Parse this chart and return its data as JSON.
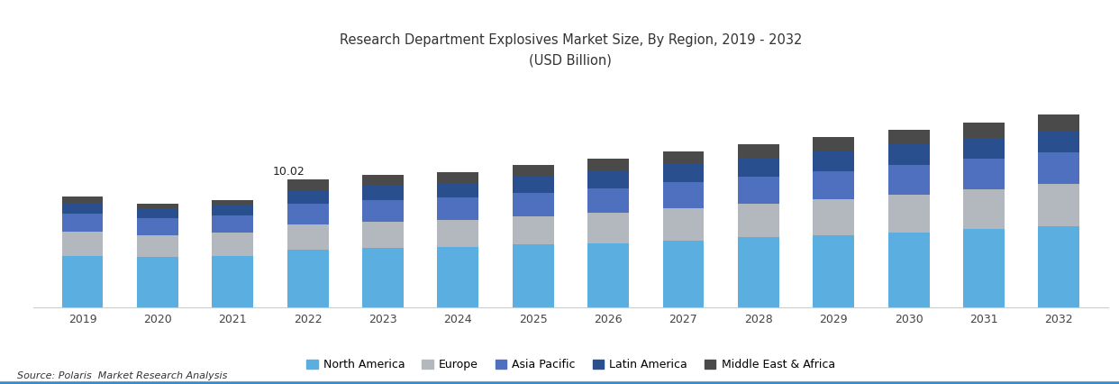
{
  "title_line1": "Research Department Explosives Market Size, By Region, 2019 - 2032",
  "title_line2": "(USD Billion)",
  "years": [
    2019,
    2020,
    2021,
    2022,
    2023,
    2024,
    2025,
    2026,
    2027,
    2028,
    2029,
    2030,
    2031,
    2032
  ],
  "regions": [
    "North America",
    "Europe",
    "Asia Pacific",
    "Latin America",
    "Middle East & Africa"
  ],
  "colors": [
    "#5aaee0",
    "#b2b8be",
    "#4f6fbf",
    "#2a4f8f",
    "#4a4a4a"
  ],
  "data": {
    "North America": [
      4.0,
      3.9,
      4.0,
      4.5,
      4.6,
      4.7,
      4.9,
      5.0,
      5.2,
      5.45,
      5.65,
      5.85,
      6.1,
      6.35
    ],
    "Europe": [
      1.9,
      1.75,
      1.8,
      2.0,
      2.1,
      2.1,
      2.2,
      2.35,
      2.5,
      2.65,
      2.8,
      2.95,
      3.1,
      3.25
    ],
    "Asia Pacific": [
      1.4,
      1.3,
      1.35,
      1.6,
      1.7,
      1.75,
      1.85,
      1.95,
      2.05,
      2.1,
      2.2,
      2.3,
      2.4,
      2.5
    ],
    "Latin America": [
      0.85,
      0.75,
      0.8,
      1.05,
      1.1,
      1.15,
      1.25,
      1.35,
      1.45,
      1.5,
      1.55,
      1.6,
      1.65,
      1.7
    ],
    "Middle East & Africa": [
      0.5,
      0.4,
      0.45,
      0.87,
      0.82,
      0.85,
      0.92,
      0.95,
      1.0,
      1.05,
      1.1,
      1.15,
      1.2,
      1.25
    ]
  },
  "annotation_year": 2022,
  "annotation_value": "10.02",
  "source_text": "Source: Polaris  Market Research Analysis",
  "background_color": "#ffffff",
  "border_color": "#3b8bc6",
  "ylim": [
    0,
    18
  ],
  "bar_width": 0.55
}
